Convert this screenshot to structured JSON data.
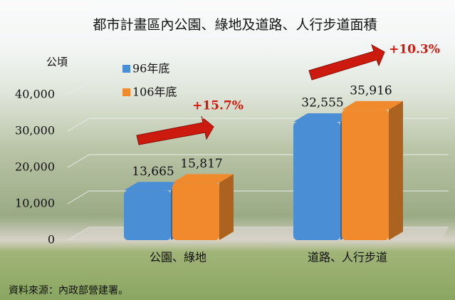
{
  "chart_data": {
    "type": "bar",
    "title": "都市計畫區內公園、綠地及道路、人行步道面積",
    "y_label": "公頃",
    "categories": [
      "公園、綠地",
      "道路、人行步道"
    ],
    "series": [
      {
        "name": "96年底",
        "color": "#4a8fd6",
        "values": [
          13665,
          32555
        ],
        "value_labels": [
          "13,665",
          "32,555"
        ]
      },
      {
        "name": "106年底",
        "color": "#f08a2c",
        "values": [
          15817,
          35916
        ],
        "value_labels": [
          "15,817",
          "35,916"
        ]
      }
    ],
    "ylim": [
      0,
      40000
    ],
    "yticks": [
      0,
      {
        "value": 10000,
        "label": "10,000"
      },
      {
        "value": 20000,
        "label": "20,000"
      },
      {
        "value": 30000,
        "label": "30,000"
      },
      {
        "value": 40000,
        "label": "40,000"
      }
    ],
    "annotations": [
      "+15.7%",
      "+10.3%"
    ],
    "source": "資料來源：內政部營建署。",
    "grid": true
  }
}
